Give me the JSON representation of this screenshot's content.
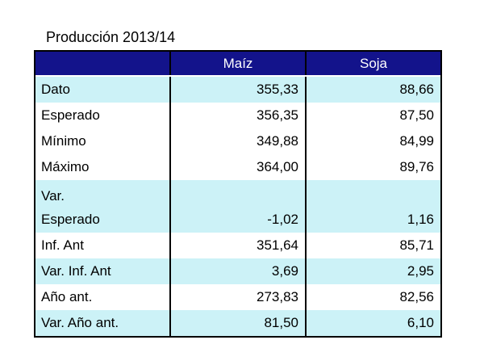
{
  "title": "Producción 2013/14",
  "table": {
    "column_headers": {
      "label": "",
      "maiz": "Maíz",
      "soja": "Soja"
    },
    "rows": [
      {
        "label": "Dato",
        "maiz": "355,33",
        "soja": "88,66",
        "highlight": true,
        "two_line": false
      },
      {
        "label": "Esperado",
        "maiz": "356,35",
        "soja": "87,50",
        "highlight": false,
        "two_line": false
      },
      {
        "label": "Mínimo",
        "maiz": "349,88",
        "soja": "84,99",
        "highlight": false,
        "two_line": false
      },
      {
        "label": "Máximo",
        "maiz": "364,00",
        "soja": "89,76",
        "highlight": false,
        "two_line": false
      },
      {
        "label": "Var.\nEsperado",
        "maiz": "-1,02",
        "soja": "1,16",
        "highlight": true,
        "two_line": true
      },
      {
        "label": "Inf. Ant",
        "maiz": "351,64",
        "soja": "85,71",
        "highlight": false,
        "two_line": false
      },
      {
        "label": "Var. Inf. Ant",
        "maiz": "3,69",
        "soja": "2,95",
        "highlight": true,
        "two_line": false
      },
      {
        "label": "Año ant.",
        "maiz": "273,83",
        "soja": "82,56",
        "highlight": false,
        "two_line": false
      },
      {
        "label": "Var. Año ant.",
        "maiz": "81,50",
        "soja": "6,10",
        "highlight": true,
        "two_line": false
      }
    ],
    "colors": {
      "header_bg": "#13138B",
      "header_text": "#FFFFFF",
      "highlight_bg": "#CCF2F7",
      "row_bg": "#FFFFFF",
      "border": "#000000",
      "text": "#000000"
    }
  },
  "chart_data": {
    "type": "table",
    "title": "Producción 2013/14",
    "columns": [
      "",
      "Maíz",
      "Soja"
    ],
    "rows": [
      [
        "Dato",
        355.33,
        88.66
      ],
      [
        "Esperado",
        356.35,
        87.5
      ],
      [
        "Mínimo",
        349.88,
        84.99
      ],
      [
        "Máximo",
        364.0,
        89.76
      ],
      [
        "Var. Esperado",
        -1.02,
        1.16
      ],
      [
        "Inf. Ant",
        351.64,
        85.71
      ],
      [
        "Var. Inf. Ant",
        3.69,
        2.95
      ],
      [
        "Año ant.",
        273.83,
        82.56
      ],
      [
        "Var. Año ant.",
        81.5,
        6.1
      ]
    ],
    "notes": "Decimal comma formatting; highlighted (cyan) rows: Dato, Var. Esperado, Var. Inf. Ant, Var. Año ant."
  }
}
